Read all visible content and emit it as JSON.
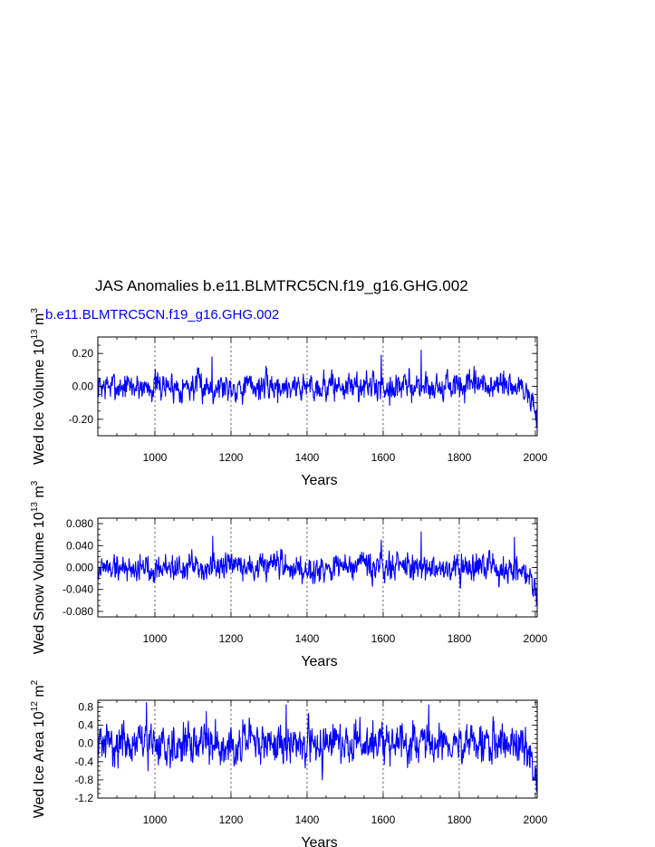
{
  "figure": {
    "title": "JAS Anomalies b.e11.BLMTRC5CN.f19_g16.GHG.002",
    "case_label": "b.e11.BLMTRC5CN.f19_g16.GHG.002",
    "line_color": "#0000ff"
  },
  "chart_data": [
    {
      "type": "line",
      "title": "JAS Anomalies b.e11.BLMTRC5CN.f19_g16.GHG.002",
      "series": [
        {
          "name": "b.e11.BLMTRC5CN.f19_g16.GHG.002"
        }
      ],
      "ylabel": "Wed Ice Volume 10^13 m^3",
      "ylabel_parts": {
        "base": "Wed Ice Volume 10",
        "exp1": "13",
        "mid": " m",
        "exp2": "3"
      },
      "xlabel": "Years",
      "xlim": [
        850,
        2005
      ],
      "ylim": [
        -0.3,
        0.3
      ],
      "xticks": [
        1000,
        1200,
        1400,
        1600,
        1800,
        2000
      ],
      "yticks": [
        -0.2,
        0.0,
        0.2
      ],
      "ytick_labels": [
        "-0.20",
        "0.00",
        "0.20"
      ],
      "ygrid_minor": 0.05,
      "vgrid": [
        1000,
        1200,
        1400,
        1600,
        1800
      ],
      "noise_amp": 0.055,
      "trend_end": -0.16,
      "peaks": [
        [
          1150,
          0.18
        ],
        [
          1595,
          0.19
        ],
        [
          1700,
          0.22
        ],
        [
          2003,
          -0.25
        ]
      ],
      "seed": 7
    },
    {
      "type": "line",
      "series": [
        {
          "name": "b.e11.BLMTRC5CN.f19_g16.GHG.002"
        }
      ],
      "ylabel": "Wed Snow Volume 10^13 m^3",
      "ylabel_parts": {
        "base": "Wed Snow Volume 10",
        "exp1": "13",
        "mid": " m",
        "exp2": "3"
      },
      "xlabel": "Years",
      "xlim": [
        850,
        2005
      ],
      "ylim": [
        -0.09,
        0.09
      ],
      "xticks": [
        1000,
        1200,
        1400,
        1600,
        1800,
        2000
      ],
      "yticks": [
        -0.08,
        -0.04,
        0.0,
        0.04,
        0.08
      ],
      "ytick_labels": [
        "-0.080",
        "-0.040",
        "0.000",
        "0.040",
        "0.080"
      ],
      "ygrid_minor": 0.01,
      "vgrid": [
        1000,
        1200,
        1400,
        1600,
        1800
      ],
      "noise_amp": 0.016,
      "trend_end": -0.045,
      "peaks": [
        [
          1152,
          0.057
        ],
        [
          1595,
          0.05
        ],
        [
          1700,
          0.065
        ],
        [
          1945,
          0.055
        ],
        [
          2003,
          -0.068
        ]
      ],
      "seed": 19
    },
    {
      "type": "line",
      "series": [
        {
          "name": "b.e11.BLMTRC5CN.f19_g16.GHG.002"
        }
      ],
      "ylabel": "Wed Ice Area 10^12 m^2",
      "ylabel_parts": {
        "base": "Wed Ice Area 10",
        "exp1": "12",
        "mid": " m",
        "exp2": "2"
      },
      "xlabel": "Years",
      "xlim": [
        850,
        2005
      ],
      "ylim": [
        -1.2,
        0.95
      ],
      "xticks": [
        1000,
        1200,
        1400,
        1600,
        1800,
        2000
      ],
      "yticks": [
        -1.2,
        -0.8,
        -0.4,
        0.0,
        0.4,
        0.8
      ],
      "ytick_labels": [
        "-1.2",
        "-0.8",
        "-0.4",
        "0.0",
        "0.4",
        "0.8"
      ],
      "ygrid_minor": 0.1,
      "vgrid": [
        1000,
        1200,
        1400,
        1600,
        1800
      ],
      "noise_amp": 0.28,
      "trend_end": -0.7,
      "peaks": [
        [
          978,
          0.9
        ],
        [
          1135,
          0.7
        ],
        [
          1345,
          0.85
        ],
        [
          1720,
          0.85
        ],
        [
          1440,
          -0.8
        ],
        [
          2003,
          -1.05
        ]
      ],
      "seed": 31
    }
  ]
}
